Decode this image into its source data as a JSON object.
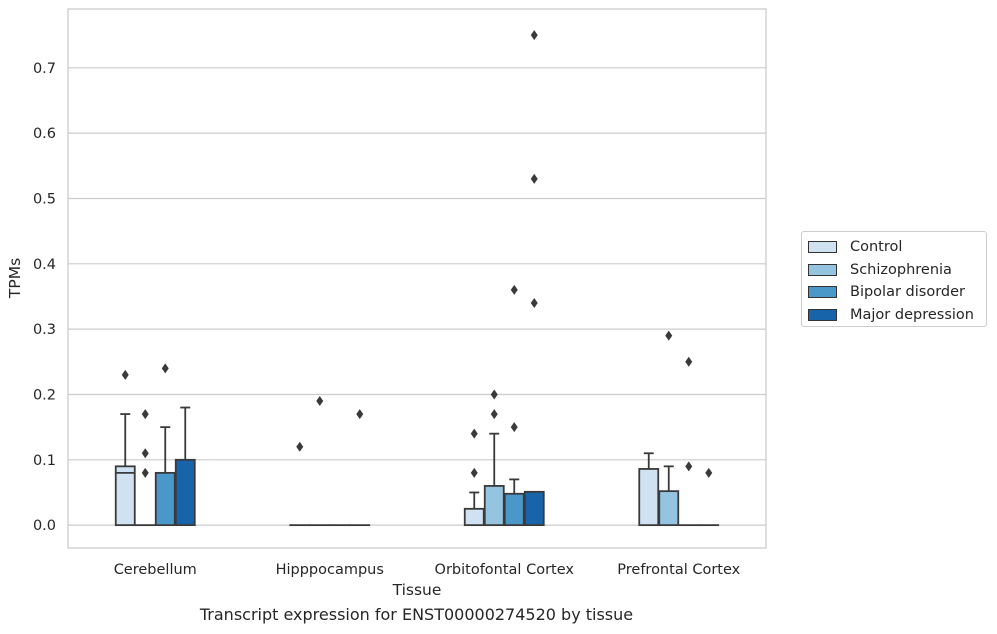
{
  "chart_data": {
    "type": "box",
    "caption": "Transcript expression for ENST00000274520 by tissue",
    "xlabel": "Tissue",
    "ylabel": "TPMs",
    "ylim": [
      -0.035,
      0.79
    ],
    "yticks": [
      "0.0",
      "0.1",
      "0.2",
      "0.3",
      "0.4",
      "0.5",
      "0.6",
      "0.7"
    ],
    "ytick_values": [
      0,
      0.1,
      0.2,
      0.3,
      0.4,
      0.5,
      0.6,
      0.7
    ],
    "grid": "horizontal",
    "legend_position": "right",
    "categories": [
      "Cerebellum",
      "Hipppocampus",
      "Orbitofontal Cortex",
      "Prefrontal Cortex"
    ],
    "series": [
      {
        "name": "Control",
        "color": "#d0e1f2",
        "boxes": [
          {
            "q1": 0,
            "median": 0.08,
            "q3": 0.09,
            "whisker_low": 0,
            "whisker_high": 0.17,
            "outliers": [
              0.23
            ]
          },
          {
            "q1": 0,
            "median": 0,
            "q3": 0,
            "whisker_low": 0,
            "whisker_high": 0,
            "outliers": [
              0.12
            ]
          },
          {
            "q1": 0,
            "median": 0,
            "q3": 0.025,
            "whisker_low": 0,
            "whisker_high": 0.05,
            "outliers": [
              0.08,
              0.14
            ]
          },
          {
            "q1": 0,
            "median": 0,
            "q3": 0.086,
            "whisker_low": 0,
            "whisker_high": 0.11,
            "outliers": []
          }
        ]
      },
      {
        "name": "Schizophrenia",
        "color": "#94c4df",
        "boxes": [
          {
            "q1": 0,
            "median": 0,
            "q3": 0,
            "whisker_low": 0,
            "whisker_high": 0,
            "outliers": [
              0.08,
              0.11,
              0.17
            ]
          },
          {
            "q1": 0,
            "median": 0,
            "q3": 0,
            "whisker_low": 0,
            "whisker_high": 0,
            "outliers": [
              0.19
            ]
          },
          {
            "q1": 0,
            "median": 0,
            "q3": 0.06,
            "whisker_low": 0,
            "whisker_high": 0.14,
            "outliers": [
              0.17,
              0.2
            ]
          },
          {
            "q1": 0,
            "median": 0,
            "q3": 0.052,
            "whisker_low": 0,
            "whisker_high": 0.09,
            "outliers": [
              0.29
            ]
          }
        ]
      },
      {
        "name": "Bipolar disorder",
        "color": "#4a98c9",
        "boxes": [
          {
            "q1": 0,
            "median": 0,
            "q3": 0.08,
            "whisker_low": 0,
            "whisker_high": 0.15,
            "outliers": [
              0.24
            ]
          },
          {
            "q1": 0,
            "median": 0,
            "q3": 0,
            "whisker_low": 0,
            "whisker_high": 0,
            "outliers": []
          },
          {
            "q1": 0,
            "median": 0,
            "q3": 0.048,
            "whisker_low": 0,
            "whisker_high": 0.07,
            "outliers": [
              0.15,
              0.36
            ]
          },
          {
            "q1": 0,
            "median": 0,
            "q3": 0,
            "whisker_low": 0,
            "whisker_high": 0,
            "outliers": [
              0.09,
              0.25
            ]
          }
        ]
      },
      {
        "name": "Major depression",
        "color": "#1764ab",
        "boxes": [
          {
            "q1": 0,
            "median": 0,
            "q3": 0.1,
            "whisker_low": 0,
            "whisker_high": 0.18,
            "outliers": []
          },
          {
            "q1": 0,
            "median": 0,
            "q3": 0,
            "whisker_low": 0,
            "whisker_high": 0,
            "outliers": [
              0.17
            ]
          },
          {
            "q1": 0,
            "median": 0,
            "q3": 0.051,
            "whisker_low": 0,
            "whisker_high": 0.051,
            "outliers": [
              0.34,
              0.53,
              0.75
            ]
          },
          {
            "q1": 0,
            "median": 0,
            "q3": 0,
            "whisker_low": 0,
            "whisker_high": 0,
            "outliers": [
              0.08
            ]
          }
        ]
      }
    ]
  }
}
